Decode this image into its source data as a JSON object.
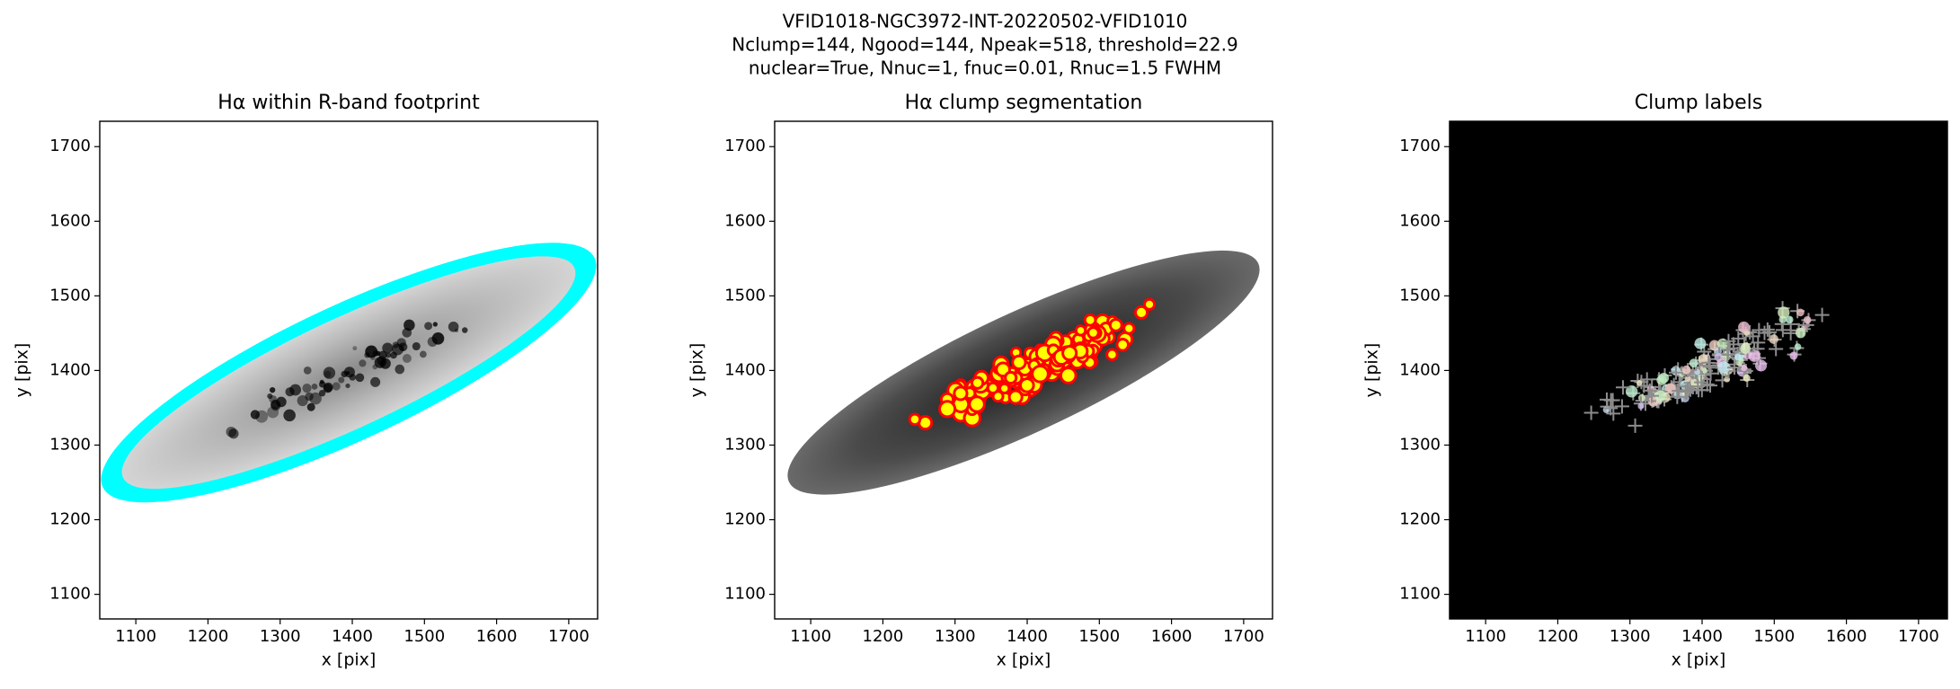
{
  "suptitle": [
    "VFID1018-NGC3972-INT-20220502-VFID1010",
    "Nclump=144, Ngood=144, Npeak=518, threshold=22.9",
    "nuclear=True, Nnuc=1, fnuc=0.01, Rnuc=1.5 FWHM"
  ],
  "chart_data": [
    {
      "type": "image",
      "title": "Hα within R-band footprint",
      "xlabel": "x [pix]",
      "ylabel": "y [pix]",
      "xlim": [
        1050,
        1740
      ],
      "ylim": [
        1067,
        1734
      ],
      "xticks": [
        1100,
        1200,
        1300,
        1400,
        1500,
        1600,
        1700
      ],
      "yticks": [
        1100,
        1200,
        1300,
        1400,
        1500,
        1600,
        1700
      ],
      "background": "#ffffff"
    },
    {
      "type": "image",
      "title": "Hα clump segmentation",
      "xlabel": "x [pix]",
      "ylabel": "y [pix]",
      "xlim": [
        1050,
        1740
      ],
      "ylim": [
        1067,
        1734
      ],
      "xticks": [
        1100,
        1200,
        1300,
        1400,
        1500,
        1600,
        1700
      ],
      "yticks": [
        1100,
        1200,
        1300,
        1400,
        1500,
        1600,
        1700
      ],
      "background": "#ffffff"
    },
    {
      "type": "image",
      "title": "Clump labels",
      "xlabel": "x [pix]",
      "ylabel": "y [pix]",
      "xlim": [
        1050,
        1740
      ],
      "ylim": [
        1067,
        1734
      ],
      "xticks": [
        1100,
        1200,
        1300,
        1400,
        1500,
        1600,
        1700
      ],
      "yticks": [
        1100,
        1200,
        1300,
        1400,
        1500,
        1600,
        1700
      ],
      "background": "#000000"
    }
  ]
}
